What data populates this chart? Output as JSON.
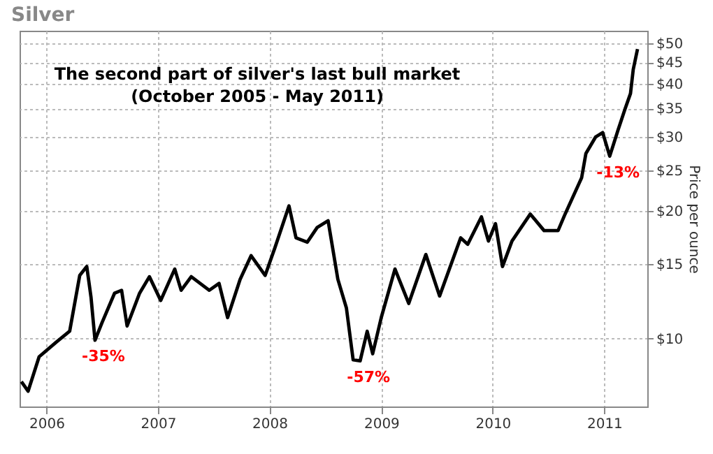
{
  "chart_data": {
    "type": "line",
    "title": "Silver",
    "ylabel": "Price per ounce",
    "x": [
      "2005-10-11",
      "2005-11-02",
      "2005-12-08",
      "2006-02-02",
      "2006-03-18",
      "2006-04-20",
      "2006-05-13",
      "2006-05-27",
      "2006-06-09",
      "2006-07-02",
      "2006-08-12",
      "2006-09-04",
      "2006-09-22",
      "2006-11-02",
      "2006-12-04",
      "2007-01-10",
      "2007-02-25",
      "2007-03-18",
      "2007-04-20",
      "2007-06-18",
      "2007-07-20",
      "2007-08-17",
      "2007-09-27",
      "2007-11-02",
      "2007-12-18",
      "2008-01-19",
      "2008-03-05",
      "2008-03-28",
      "2008-05-04",
      "2008-06-05",
      "2008-07-11",
      "2008-08-12",
      "2008-09-09",
      "2008-10-01",
      "2008-10-24",
      "2008-11-16",
      "2008-12-04",
      "2009-01-01",
      "2009-02-15",
      "2009-04-01",
      "2009-05-27",
      "2009-07-11",
      "2009-09-18",
      "2009-10-11",
      "2009-11-25",
      "2009-12-18",
      "2010-01-10",
      "2010-02-02",
      "2010-03-05",
      "2010-05-04",
      "2010-06-18",
      "2010-08-03",
      "2010-08-26",
      "2010-10-19",
      "2010-11-02",
      "2010-12-04",
      "2010-12-27",
      "2011-01-19",
      "2011-02-15",
      "2011-03-10",
      "2011-03-28",
      "2011-04-06",
      "2011-04-20"
    ],
    "series": [
      {
        "color": "#000000",
        "values": [
          7.9,
          7.5,
          9.05,
          9.8,
          10.4,
          14.1,
          14.8,
          12.5,
          9.9,
          10.9,
          12.8,
          13.0,
          10.7,
          12.8,
          14.0,
          12.3,
          14.6,
          13.0,
          14.0,
          13.0,
          13.5,
          11.2,
          13.8,
          15.7,
          14.1,
          16.4,
          20.6,
          17.3,
          16.9,
          18.3,
          19.0,
          13.8,
          11.8,
          8.9,
          8.85,
          10.4,
          9.2,
          11.2,
          14.6,
          12.1,
          15.8,
          12.6,
          17.3,
          16.7,
          19.4,
          17.0,
          18.7,
          14.8,
          17.0,
          19.7,
          18.0,
          18.0,
          19.7,
          24.0,
          27.4,
          30.0,
          30.7,
          27.0,
          31.1,
          34.9,
          38.0,
          43.3,
          48.4
        ]
      }
    ],
    "xlim": [
      "2005-10-05",
      "2011-05-22"
    ],
    "xticks": [
      "2006",
      "2007",
      "2008",
      "2009",
      "2010",
      "2011"
    ],
    "ylim": [
      6.9,
      53.5
    ],
    "log": true,
    "yticks": [
      {
        "value": 10,
        "label": "$10"
      },
      {
        "value": 15,
        "label": "$15"
      },
      {
        "value": 20,
        "label": "$20"
      },
      {
        "value": 25,
        "label": "$25"
      },
      {
        "value": 30,
        "label": "$30"
      },
      {
        "value": 35,
        "label": "$35"
      },
      {
        "value": 40,
        "label": "$40"
      },
      {
        "value": 45,
        "label": "$45"
      },
      {
        "value": 50,
        "label": "$50"
      }
    ],
    "grid": true,
    "annotations": [
      "The second part of silver's last bull market",
      "(October 2005 - May 2011)",
      {
        "text": "-35%",
        "x": "2006-06-09",
        "y": 9.9
      },
      {
        "text": "-57%",
        "x": "2008-10-24",
        "y": 8.85
      },
      {
        "text": "-13%",
        "x": "2011-01-19",
        "y": 27.0
      }
    ]
  }
}
